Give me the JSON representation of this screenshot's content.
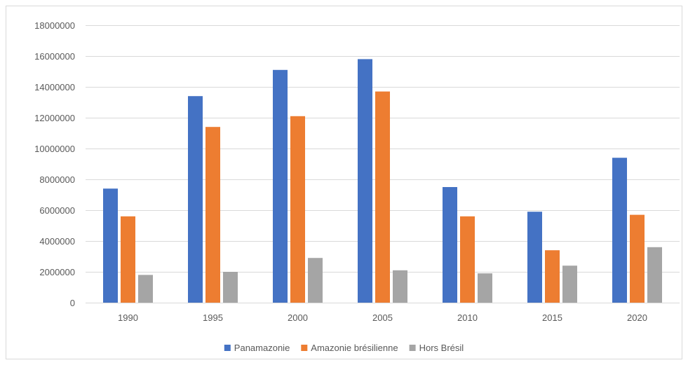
{
  "chart_data": {
    "type": "bar",
    "categories": [
      "1990",
      "1995",
      "2000",
      "2005",
      "2010",
      "2015",
      "2020"
    ],
    "series": [
      {
        "name": "Panamazonie",
        "color": "#4472c4",
        "values": [
          7400000,
          13400000,
          15100000,
          15800000,
          7500000,
          5900000,
          9400000
        ]
      },
      {
        "name": "Amazonie brésilienne",
        "color": "#ed7d31",
        "values": [
          5600000,
          11400000,
          12100000,
          13700000,
          5600000,
          3400000,
          5700000
        ]
      },
      {
        "name": "Hors Brésil",
        "color": "#a5a5a5",
        "values": [
          1800000,
          2000000,
          2900000,
          2100000,
          1900000,
          2400000,
          3600000
        ]
      }
    ],
    "ylim": [
      0,
      18000000
    ],
    "yticks": [
      0,
      2000000,
      4000000,
      6000000,
      8000000,
      10000000,
      12000000,
      14000000,
      16000000,
      18000000
    ],
    "ytick_labels": [
      "0",
      "2000000",
      "4000000",
      "6000000",
      "8000000",
      "10000000",
      "12000000",
      "14000000",
      "16000000",
      "18000000"
    ],
    "grid": true,
    "legend_position": "bottom",
    "gridline_color": "#d9d9d9",
    "text_color": "#595959"
  }
}
